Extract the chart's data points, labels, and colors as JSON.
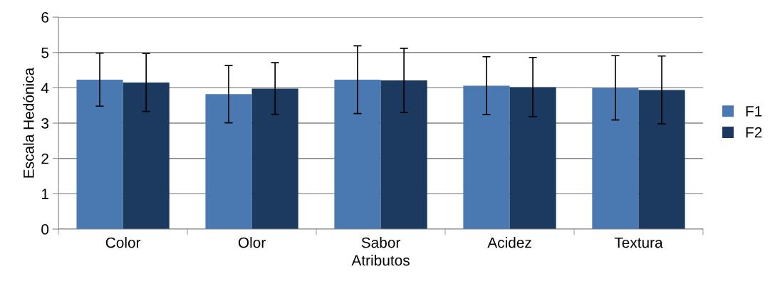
{
  "chart_data": {
    "type": "bar",
    "xlabel": "Atributos",
    "ylabel": "Escala Hedónica",
    "categories": [
      "Color",
      "Olor",
      "Sabor",
      "Acidez",
      "Textura"
    ],
    "series": [
      {
        "name": "F1",
        "color": "#4a78b0",
        "values": [
          4.23,
          3.82,
          4.23,
          4.06,
          4.0
        ],
        "errors": [
          0.75,
          0.81,
          0.96,
          0.82,
          0.91
        ]
      },
      {
        "name": "F2",
        "color": "#1c3a60",
        "values": [
          4.15,
          3.98,
          4.21,
          4.02,
          3.94
        ],
        "errors": [
          0.82,
          0.73,
          0.91,
          0.84,
          0.96
        ]
      }
    ],
    "ylim": [
      0,
      6
    ],
    "yticks": [
      0,
      1,
      2,
      3,
      4,
      5,
      6
    ],
    "grid": "y",
    "legend": "right"
  }
}
